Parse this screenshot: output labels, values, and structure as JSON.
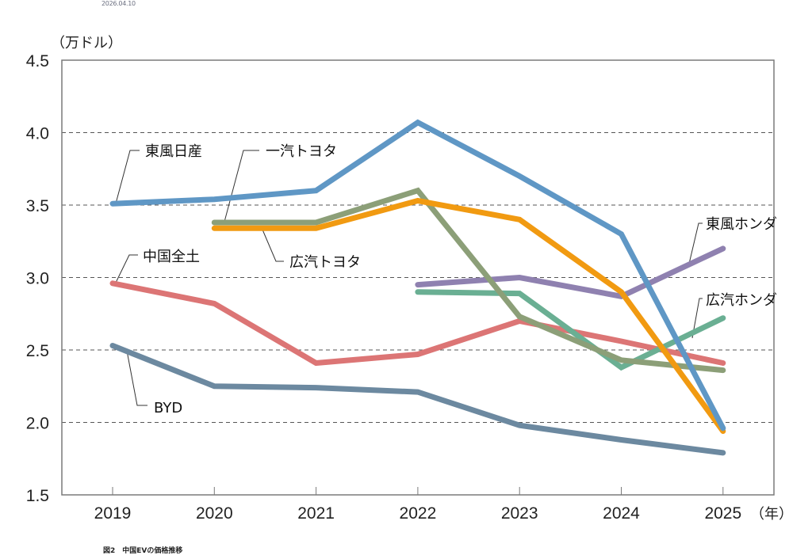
{
  "header": {
    "date": "2026.04.10"
  },
  "caption": "図2　中国EVの価格推移",
  "chart_data": {
    "type": "line",
    "title": "中国EVの価格推移",
    "ylabel": "（万ドル）",
    "xlabel": "（年）",
    "ylim": [
      1.5,
      4.5
    ],
    "yticks": [
      "1.5",
      "2.0",
      "2.5",
      "3.0",
      "3.5",
      "4.0",
      "4.5"
    ],
    "ytick_values": [
      1.5,
      2.0,
      2.5,
      3.0,
      3.5,
      4.0,
      4.5
    ],
    "categories": [
      "2019",
      "2020",
      "2021",
      "2022",
      "2023",
      "2024",
      "2025"
    ],
    "grid": "horizontal dashed",
    "series": [
      {
        "name": "東風日産",
        "color": "#5f97c5",
        "values": [
          3.51,
          3.54,
          3.6,
          4.07,
          3.7,
          3.3,
          1.96
        ]
      },
      {
        "name": "一汽トヨタ",
        "color": "#8c9f78",
        "values": [
          null,
          3.38,
          3.38,
          3.6,
          2.73,
          2.43,
          2.36
        ]
      },
      {
        "name": "広汽トヨタ",
        "color": "#f19a11",
        "values": [
          null,
          3.34,
          3.34,
          3.53,
          3.4,
          2.9,
          1.94
        ]
      },
      {
        "name": "東風ホンダ",
        "color": "#8f81b0",
        "values": [
          null,
          null,
          null,
          2.95,
          3.0,
          2.87,
          3.2
        ]
      },
      {
        "name": "広汽ホンダ",
        "color": "#6aaf93",
        "values": [
          null,
          null,
          null,
          2.9,
          2.89,
          2.38,
          2.72
        ]
      },
      {
        "name": "中国全土",
        "color": "#dc7575",
        "values": [
          2.96,
          2.82,
          2.41,
          2.47,
          2.7,
          2.56,
          2.41
        ]
      },
      {
        "name": "BYD",
        "color": "#6c89a0",
        "values": [
          2.53,
          2.25,
          2.24,
          2.21,
          1.98,
          1.88,
          1.79
        ]
      }
    ]
  }
}
